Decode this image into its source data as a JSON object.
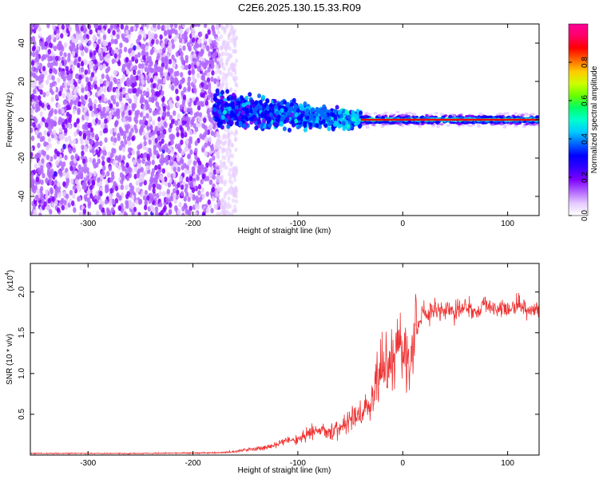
{
  "title": "C2E6.2025.130.15.33.R09",
  "chart_data": [
    {
      "type": "heatmap",
      "xlabel": "Height of straight line (km)",
      "ylabel": "Frequency (Hz)",
      "xlim": [
        -355,
        130
      ],
      "ylim": [
        -50,
        50
      ],
      "xticks": [
        -300,
        -200,
        -100,
        0,
        100
      ],
      "yticks": [
        -40,
        -20,
        0,
        20,
        40
      ],
      "colorbar": {
        "label": "Normalized spectral amplitude",
        "ticks": [
          "0.0",
          "0.2",
          "0.4",
          "0.6",
          "0.8"
        ],
        "range": [
          0,
          1
        ],
        "colors": [
          "#ffffff",
          "#e6ccff",
          "#b266ff",
          "#7f00ff",
          "#3300ff",
          "#0000ff",
          "#0066ff",
          "#00ccff",
          "#00ffcc",
          "#00ff66",
          "#66ff00",
          "#ccff00",
          "#ffcc00",
          "#ff6600",
          "#ff0000",
          "#ff0066",
          "#ff0099"
        ]
      },
      "regions": [
        {
          "x": [
            -355,
            -175
          ],
          "freq": [
            -50,
            50
          ],
          "amplitude": 0.2,
          "pattern": "broadband noise"
        },
        {
          "x": [
            -180,
            -40
          ],
          "freq": [
            -12,
            12
          ],
          "amplitude": 0.5,
          "pattern": "narrowing band"
        },
        {
          "x": [
            -40,
            130
          ],
          "freq": [
            -2,
            2
          ],
          "amplitude": 0.9,
          "pattern": "narrow line near 0 Hz"
        }
      ]
    },
    {
      "type": "line",
      "xlabel": "Height of straight line (km)",
      "ylabel": "SNR (10 * v/v)",
      "multiplier": "(x10",
      "multiplier_exp": "4",
      "xlim": [
        -355,
        130
      ],
      "ylim": [
        0,
        23500
      ],
      "xticks": [
        -300,
        -200,
        -100,
        0,
        100
      ],
      "yticks": [
        "0.5",
        "1.0",
        "1.5",
        "2.0"
      ],
      "series": [
        {
          "color": "#ee3333",
          "x": [
            -355,
            -300,
            -250,
            -200,
            -170,
            -150,
            -130,
            -110,
            -100,
            -90,
            -80,
            -70,
            -60,
            -50,
            -45,
            -40,
            -35,
            -30,
            -25,
            -20,
            -15,
            -10,
            -5,
            0,
            5,
            10,
            15,
            20,
            25,
            30,
            40,
            50,
            60,
            70,
            80,
            90,
            100,
            110,
            120,
            130
          ],
          "y": [
            200,
            200,
            200,
            250,
            300,
            600,
            900,
            1700,
            2000,
            2600,
            3000,
            3200,
            3000,
            4500,
            5000,
            4500,
            6000,
            6500,
            9000,
            12000,
            12000,
            10500,
            14000,
            13500,
            12000,
            13500,
            16000,
            17500,
            17000,
            18000,
            18000,
            17500,
            18500,
            17500,
            18500,
            18000,
            18000,
            18500,
            17500,
            18000
          ]
        }
      ]
    }
  ]
}
